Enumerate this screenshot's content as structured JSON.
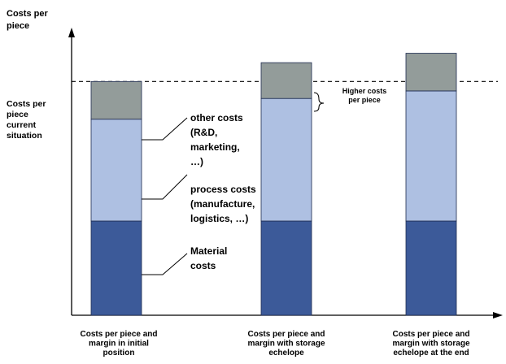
{
  "chart_data": {
    "type": "bar",
    "stacked": true,
    "grid": false,
    "legend": "none",
    "categories": [
      [
        "Costs per piece and",
        "margin in initial",
        "position"
      ],
      [
        "Costs per piece and",
        "margin with storage",
        "echelope"
      ],
      [
        "Costs per piece and",
        "margin with storage",
        "echelope at the end"
      ]
    ],
    "series": [
      {
        "key": "material",
        "color": "#3c5a99",
        "values": [
          100,
          100,
          100
        ]
      },
      {
        "key": "process",
        "color": "#aec0e2",
        "values": [
          108,
          130,
          138
        ]
      },
      {
        "key": "other",
        "color": "#939c9a",
        "values": [
          40,
          38,
          40
        ]
      }
    ],
    "ylim": [
      0,
      300
    ],
    "ylabel": [
      "Costs per",
      "piece"
    ],
    "reference_line": {
      "value": 248,
      "label": [
        "Costs per",
        "piece",
        "current",
        "situation"
      ]
    },
    "annotations": {
      "other": [
        "other costs",
        "(R&D,",
        "marketing,",
        "…)"
      ],
      "process": [
        "process costs",
        "(manufacture,",
        "logistics, …)"
      ],
      "material": [
        "Material",
        "costs"
      ],
      "higher": [
        "Higher  costs",
        "per piece"
      ]
    }
  }
}
